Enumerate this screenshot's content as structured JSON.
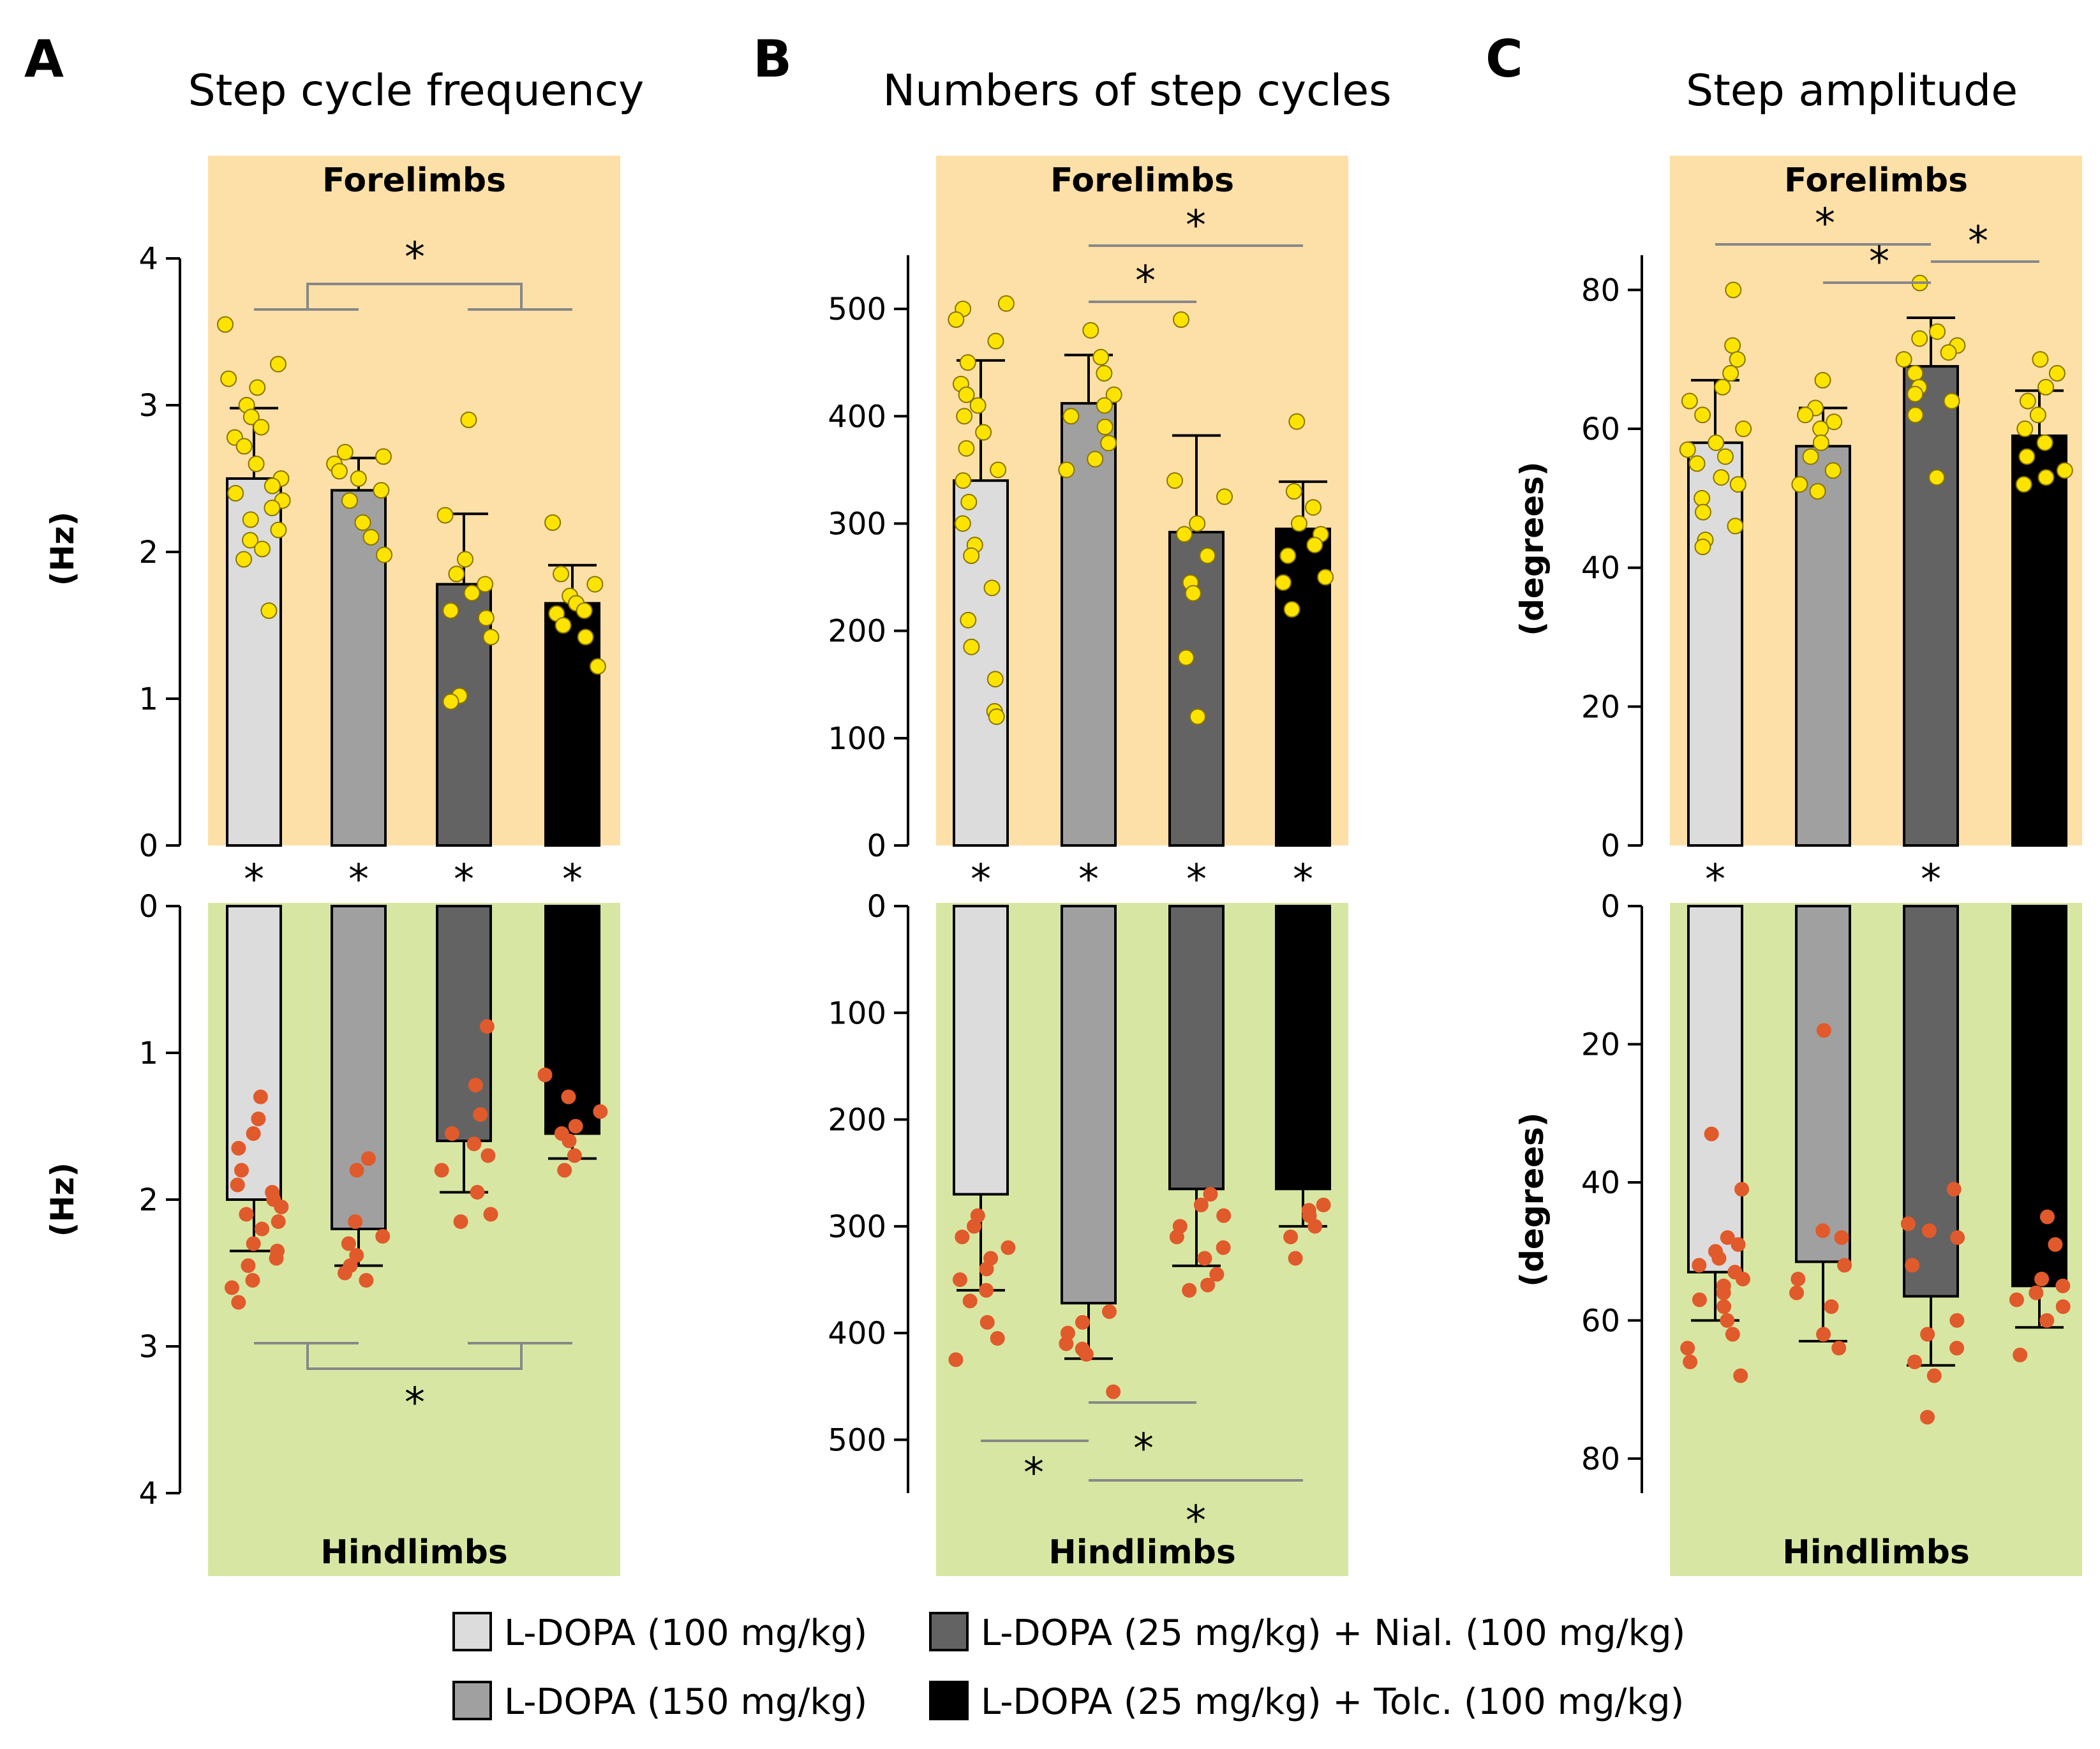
{
  "colors": {
    "forelimb_bg": "#fde0a8",
    "hindlimb_bg": "#d7e7a3",
    "fore_dot": "#fce400",
    "hind_dot": "#e05a2b",
    "sig_line": "#888888"
  },
  "legend": {
    "items": [
      {
        "label": "L-DOPA (100 mg/kg)",
        "color": "#dcdcdc"
      },
      {
        "label": "L-DOPA (25 mg/kg) + Nial. (100 mg/kg)",
        "color": "#636363"
      },
      {
        "label": "L-DOPA (150 mg/kg)",
        "color": "#a0a0a0"
      },
      {
        "label": "L-DOPA (25 mg/kg) + Tolc. (100 mg/kg)",
        "color": "#000000"
      }
    ]
  },
  "chart_data": [
    {
      "panel": "A",
      "type": "bar",
      "title": "Step cycle frequency",
      "ylabel": "(Hz)",
      "categories": [
        "L-DOPA (100 mg/kg)",
        "L-DOPA (150 mg/kg)",
        "L-DOPA (25 mg/kg) + Nial. (100 mg/kg)",
        "L-DOPA (25 mg/kg) + Tolc. (100 mg/kg)"
      ],
      "forelimbs": {
        "label": "Forelimbs",
        "ylim": [
          0,
          4
        ],
        "yticks": [
          "0",
          "1",
          "2",
          "3",
          "4"
        ],
        "means": [
          2.5,
          2.42,
          1.78,
          1.65
        ],
        "sd": [
          0.48,
          0.22,
          0.48,
          0.26
        ],
        "points": [
          [
            3.55,
            3.28,
            3.18,
            3.12,
            3.0,
            2.92,
            2.85,
            2.78,
            2.72,
            2.6,
            2.5,
            2.45,
            2.4,
            2.35,
            2.3,
            2.22,
            2.15,
            2.08,
            2.02,
            1.95,
            1.6
          ],
          [
            2.68,
            2.65,
            2.6,
            2.55,
            2.5,
            2.42,
            2.35,
            2.2,
            2.1,
            1.98
          ],
          [
            2.9,
            2.25,
            1.95,
            1.85,
            1.78,
            1.72,
            1.6,
            1.55,
            1.42,
            1.02,
            0.98
          ],
          [
            2.2,
            1.85,
            1.78,
            1.7,
            1.65,
            1.6,
            1.58,
            1.5,
            1.42,
            1.22
          ]
        ],
        "stars_below_bars": [
          "*",
          "*",
          "*",
          "*"
        ],
        "significance": [
          "*"
        ]
      },
      "hindlimbs": {
        "label": "Hindlimbs",
        "ylim": [
          0,
          4
        ],
        "yticks": [
          "0",
          "1",
          "2",
          "3",
          "4"
        ],
        "means": [
          2.0,
          2.2,
          1.6,
          1.55
        ],
        "sd": [
          0.35,
          0.25,
          0.35,
          0.17
        ],
        "points": [
          [
            1.3,
            1.45,
            1.55,
            1.65,
            1.8,
            1.9,
            1.95,
            2.0,
            2.05,
            2.1,
            2.15,
            2.2,
            2.3,
            2.35,
            2.4,
            2.45,
            2.55,
            2.6,
            2.7
          ],
          [
            1.72,
            1.8,
            2.15,
            2.25,
            2.3,
            2.38,
            2.45,
            2.5,
            2.55
          ],
          [
            0.82,
            1.22,
            1.42,
            1.55,
            1.62,
            1.7,
            1.8,
            1.95,
            2.1,
            2.15
          ],
          [
            1.15,
            1.3,
            1.4,
            1.5,
            1.55,
            1.6,
            1.7,
            1.8
          ]
        ],
        "significance": [
          "*"
        ]
      }
    },
    {
      "panel": "B",
      "type": "bar",
      "title": "Numbers of step cycles",
      "ylabel": "",
      "categories": [
        "L-DOPA (100 mg/kg)",
        "L-DOPA (150 mg/kg)",
        "L-DOPA (25 mg/kg) + Nial. (100 mg/kg)",
        "L-DOPA (25 mg/kg) + Tolc. (100 mg/kg)"
      ],
      "forelimbs": {
        "label": "Forelimbs",
        "ylim": [
          0,
          550
        ],
        "yticks": [
          "0",
          "100",
          "200",
          "300",
          "400",
          "500"
        ],
        "means": [
          340,
          412,
          292,
          295
        ],
        "sd": [
          112,
          45,
          90,
          44
        ],
        "points": [
          [
            505,
            500,
            490,
            470,
            450,
            430,
            420,
            410,
            400,
            385,
            370,
            350,
            340,
            320,
            300,
            280,
            270,
            240,
            210,
            185,
            155,
            125,
            120
          ],
          [
            480,
            455,
            440,
            420,
            410,
            400,
            390,
            375,
            360,
            350
          ],
          [
            490,
            340,
            325,
            300,
            290,
            270,
            245,
            235,
            175,
            120
          ],
          [
            395,
            330,
            315,
            300,
            290,
            280,
            270,
            250,
            245,
            220
          ]
        ],
        "stars_below_bars": [
          "*",
          "*",
          "*",
          "*"
        ],
        "significance": [
          "*",
          "*"
        ]
      },
      "hindlimbs": {
        "label": "Hindlimbs",
        "ylim": [
          0,
          550
        ],
        "yticks": [
          "0",
          "100",
          "200",
          "300",
          "400",
          "500"
        ],
        "means": [
          270,
          372,
          265,
          265
        ],
        "sd": [
          90,
          52,
          72,
          35
        ],
        "points": [
          [
            290,
            300,
            310,
            320,
            330,
            340,
            350,
            360,
            370,
            390,
            405,
            425
          ],
          [
            380,
            390,
            400,
            410,
            415,
            420,
            455
          ],
          [
            270,
            280,
            290,
            300,
            310,
            320,
            330,
            345,
            355,
            360
          ],
          [
            280,
            285,
            290,
            300,
            310,
            330
          ]
        ],
        "significance": [
          "*",
          "*",
          "*"
        ]
      }
    },
    {
      "panel": "C",
      "type": "bar",
      "title": "Step amplitude",
      "ylabel": "(degrees)",
      "categories": [
        "L-DOPA (100 mg/kg)",
        "L-DOPA (150 mg/kg)",
        "L-DOPA (25 mg/kg) + Nial. (100 mg/kg)",
        "L-DOPA (25 mg/kg) + Tolc. (100 mg/kg)"
      ],
      "forelimbs": {
        "label": "Forelimbs",
        "ylim": [
          0,
          85
        ],
        "yticks": [
          "0",
          "20",
          "40",
          "60",
          "80"
        ],
        "means": [
          58,
          57.5,
          69,
          59
        ],
        "sd": [
          9,
          5.5,
          7,
          6.5
        ],
        "points": [
          [
            80,
            72,
            70,
            68,
            66,
            64,
            62,
            60,
            58,
            57,
            56,
            55,
            53,
            52,
            50,
            48,
            46,
            44,
            43
          ],
          [
            67,
            63,
            62,
            61,
            60,
            58,
            56,
            54,
            52,
            51
          ],
          [
            81,
            74,
            73,
            72,
            71,
            70,
            68,
            66,
            65,
            64,
            62,
            53
          ],
          [
            70,
            68,
            66,
            64,
            62,
            60,
            58,
            56,
            54,
            53,
            52
          ]
        ],
        "stars_below_bars": [
          "*",
          "",
          "*",
          ""
        ],
        "significance": [
          "*",
          "*",
          "*"
        ]
      },
      "hindlimbs": {
        "label": "Hindlimbs",
        "ylim": [
          0,
          85
        ],
        "yticks": [
          "0",
          "20",
          "40",
          "60",
          "80"
        ],
        "means": [
          53,
          51.5,
          56.5,
          55
        ],
        "sd": [
          7,
          11.5,
          10,
          6
        ],
        "points": [
          [
            33,
            41,
            48,
            49,
            50,
            51,
            52,
            53,
            54,
            55,
            56,
            57,
            58,
            60,
            62,
            64,
            66,
            68
          ],
          [
            18,
            47,
            48,
            52,
            54,
            56,
            58,
            62,
            64
          ],
          [
            41,
            46,
            47,
            48,
            52,
            60,
            62,
            64,
            66,
            68,
            74
          ],
          [
            45,
            49,
            54,
            55,
            56,
            57,
            58,
            60,
            65
          ]
        ],
        "significance": []
      }
    }
  ]
}
